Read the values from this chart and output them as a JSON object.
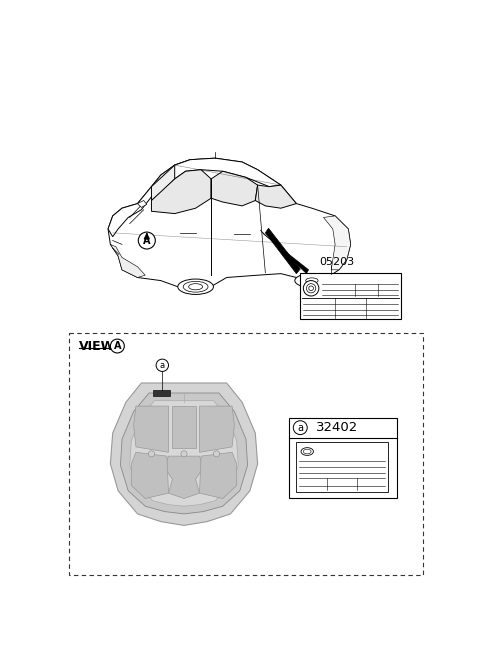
{
  "background_color": "#ffffff",
  "fig_width": 4.8,
  "fig_height": 6.57,
  "dpi": 100,
  "label_05203": "05203",
  "label_32402": "32402",
  "view_label": "VIEW",
  "circle_a_label": "A",
  "small_a_label": "a",
  "car_body_color": "#ffffff",
  "car_line_color": "#000000",
  "hood_fill_color": "#d8d8d8",
  "hood_inner_color": "#c8c8c8",
  "panel_color": "#c0c0c0",
  "dashed_border_color": "#333333"
}
